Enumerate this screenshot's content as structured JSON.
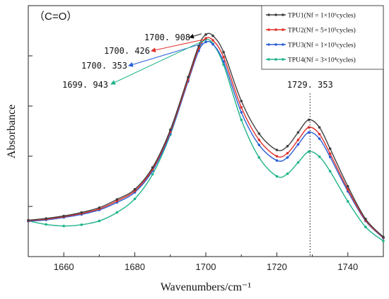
{
  "chart_data": {
    "type": "line",
    "title": "（C=O）",
    "xlabel": "Wavenumbers/cm⁻¹",
    "ylabel": "Absorbance",
    "xlim": [
      1650,
      1750
    ],
    "ylim": [
      0,
      1.0
    ],
    "x_ticks": [
      1660,
      1680,
      1700,
      1720,
      1740
    ],
    "x": [
      1650,
      1655,
      1660,
      1665,
      1670,
      1675,
      1680,
      1685,
      1690,
      1695,
      1698,
      1700,
      1702,
      1705,
      1710,
      1715,
      1720,
      1723,
      1726,
      1729,
      1732,
      1735,
      1740,
      1745,
      1750
    ],
    "series": [
      {
        "name": "TPU1(Nf = 1×10⁶cycles)",
        "color": "#404040",
        "marker": "square",
        "values": [
          0.145,
          0.152,
          0.162,
          0.176,
          0.195,
          0.228,
          0.268,
          0.355,
          0.505,
          0.715,
          0.84,
          0.885,
          0.88,
          0.815,
          0.62,
          0.49,
          0.425,
          0.44,
          0.495,
          0.545,
          0.515,
          0.43,
          0.28,
          0.15,
          0.078
        ]
      },
      {
        "name": "TPU2(Nf = 5×10⁵cycles)",
        "color": "#e0302a",
        "marker": "plus",
        "values": [
          0.143,
          0.149,
          0.159,
          0.172,
          0.19,
          0.222,
          0.262,
          0.348,
          0.498,
          0.705,
          0.83,
          0.87,
          0.862,
          0.795,
          0.595,
          0.465,
          0.4,
          0.412,
          0.465,
          0.515,
          0.488,
          0.41,
          0.268,
          0.145,
          0.076
        ]
      },
      {
        "name": "TPU3(Nf = 1×10⁵cycles)",
        "color": "#2a5fd8",
        "marker": "triangle",
        "values": [
          0.141,
          0.146,
          0.156,
          0.168,
          0.186,
          0.216,
          0.256,
          0.342,
          0.49,
          0.698,
          0.82,
          0.855,
          0.846,
          0.777,
          0.575,
          0.445,
          0.383,
          0.395,
          0.447,
          0.495,
          0.47,
          0.397,
          0.26,
          0.142,
          0.074
        ]
      },
      {
        "name": "TPU4(Nf = 3×10⁴cycles)",
        "color": "#1fb38a",
        "marker": "triangle-down",
        "values": [
          0.142,
          0.128,
          0.122,
          0.127,
          0.142,
          0.176,
          0.23,
          0.328,
          0.486,
          0.7,
          0.828,
          0.865,
          0.848,
          0.765,
          0.545,
          0.395,
          0.32,
          0.33,
          0.375,
          0.418,
          0.398,
          0.34,
          0.22,
          0.118,
          0.062
        ]
      }
    ],
    "annotations": [
      {
        "text": "1700. 908",
        "series": 0
      },
      {
        "text": "1700. 426",
        "series": 1
      },
      {
        "text": "1700. 353",
        "series": 2
      },
      {
        "text": "1699. 943",
        "series": 3
      },
      {
        "text": "1729. 353",
        "x": 1729.353
      }
    ],
    "legend": "top-right",
    "grid": false
  }
}
